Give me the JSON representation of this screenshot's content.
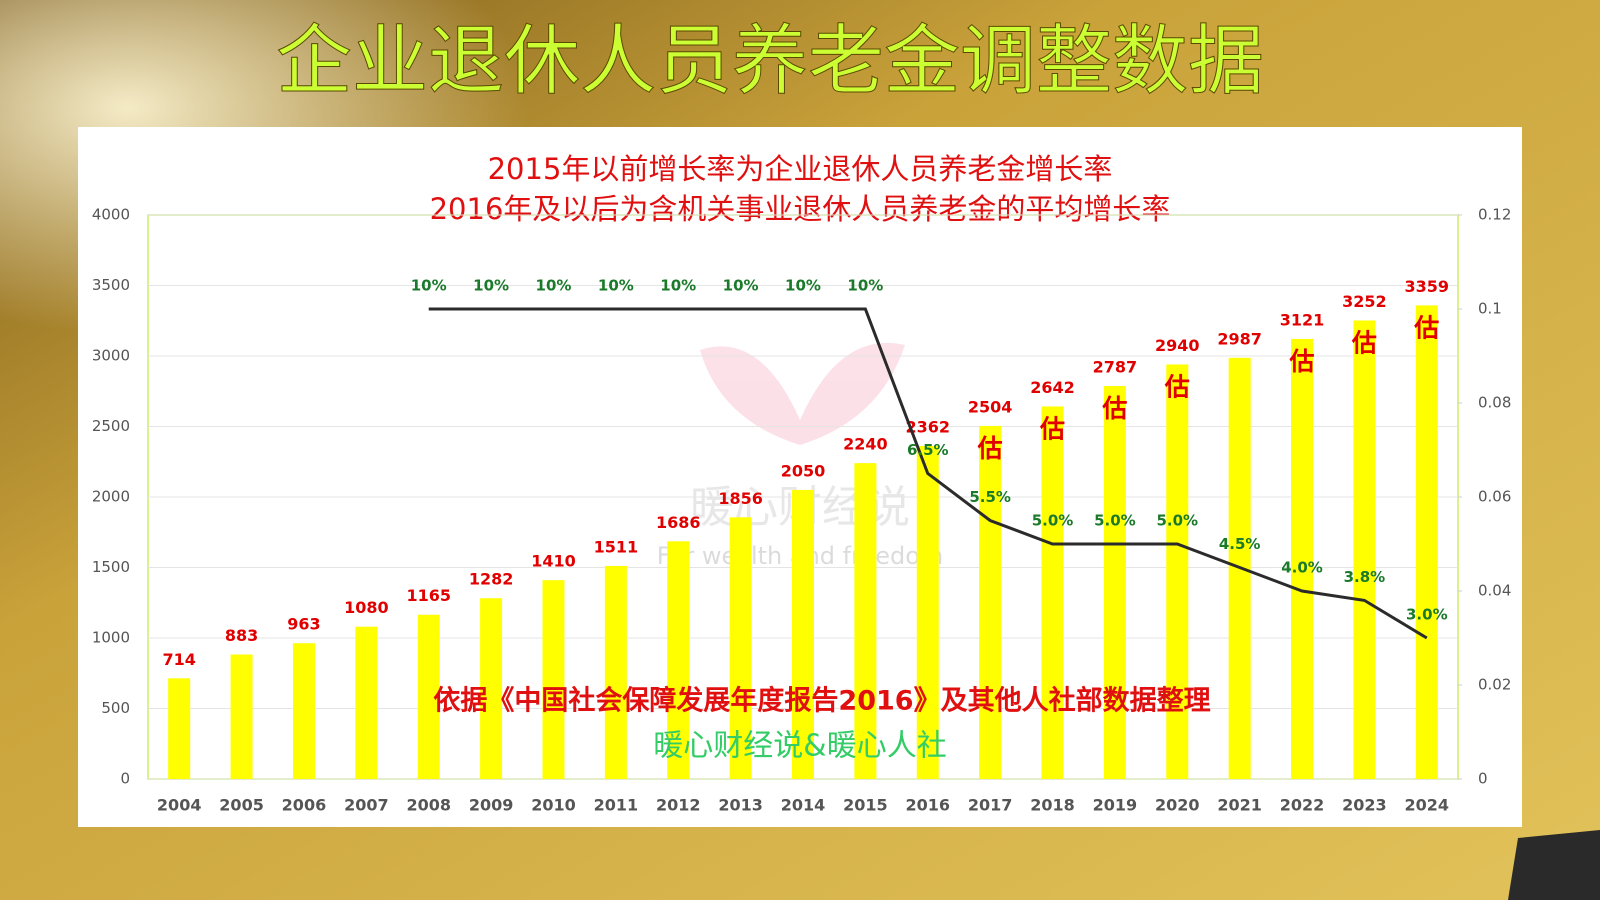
{
  "page_title": "企业退休人员养老金调整数据",
  "chart_data": {
    "type": "bar-line",
    "subtitle": [
      "2015年以前增长率为企业退休人员养老金增长率",
      "2016年及以后为含机关事业退休人员养老金的平均增长率"
    ],
    "categories": [
      "2004",
      "2005",
      "2006",
      "2007",
      "2008",
      "2009",
      "2010",
      "2011",
      "2012",
      "2013",
      "2014",
      "2015",
      "2016",
      "2017",
      "2018",
      "2019",
      "2020",
      "2021",
      "2022",
      "2023",
      "2024"
    ],
    "series": [
      {
        "type": "bar",
        "color": "#ffff00",
        "label_color": "#e00000",
        "values": [
          714,
          883,
          963,
          1080,
          1165,
          1282,
          1410,
          1511,
          1686,
          1856,
          2050,
          2240,
          2362,
          2504,
          2642,
          2787,
          2940,
          2987,
          3121,
          3252,
          3359
        ],
        "bar_notes": [
          null,
          null,
          null,
          null,
          null,
          null,
          null,
          null,
          null,
          null,
          null,
          null,
          null,
          "估",
          "估",
          "估",
          "估",
          null,
          "估",
          "估",
          "估"
        ]
      },
      {
        "type": "line",
        "axis": "y2",
        "color": "#2b2b2b",
        "label_color": "#1a7a2a",
        "values": [
          null,
          null,
          null,
          null,
          0.1,
          0.1,
          0.1,
          0.1,
          0.1,
          0.1,
          0.1,
          0.1,
          0.065,
          0.055,
          0.05,
          0.05,
          0.05,
          0.045,
          0.04,
          0.038,
          0.03
        ],
        "value_labels": [
          null,
          null,
          null,
          null,
          "10%",
          "10%",
          "10%",
          "10%",
          "10%",
          "10%",
          "10%",
          "10%",
          "6.5%",
          "5.5%",
          "5.0%",
          "5.0%",
          "5.0%",
          "4.5%",
          "4.0%",
          "3.8%",
          "3.0%"
        ]
      }
    ],
    "ylim": [
      0,
      4000
    ],
    "yticks": [
      0,
      500,
      1000,
      1500,
      2000,
      2500,
      3000,
      3500,
      4000
    ],
    "y2lim": [
      0,
      0.12
    ],
    "y2ticks": [
      0,
      0.02,
      0.04,
      0.06,
      0.08,
      0.1,
      0.12
    ],
    "grid": true,
    "annotations": [
      "依据《中国社会保障发展年度报告2016》及其他人社部数据整理",
      "暖心财经说&暖心人社"
    ],
    "watermark": [
      "暖心财经说",
      "For wealth and freedom"
    ]
  }
}
